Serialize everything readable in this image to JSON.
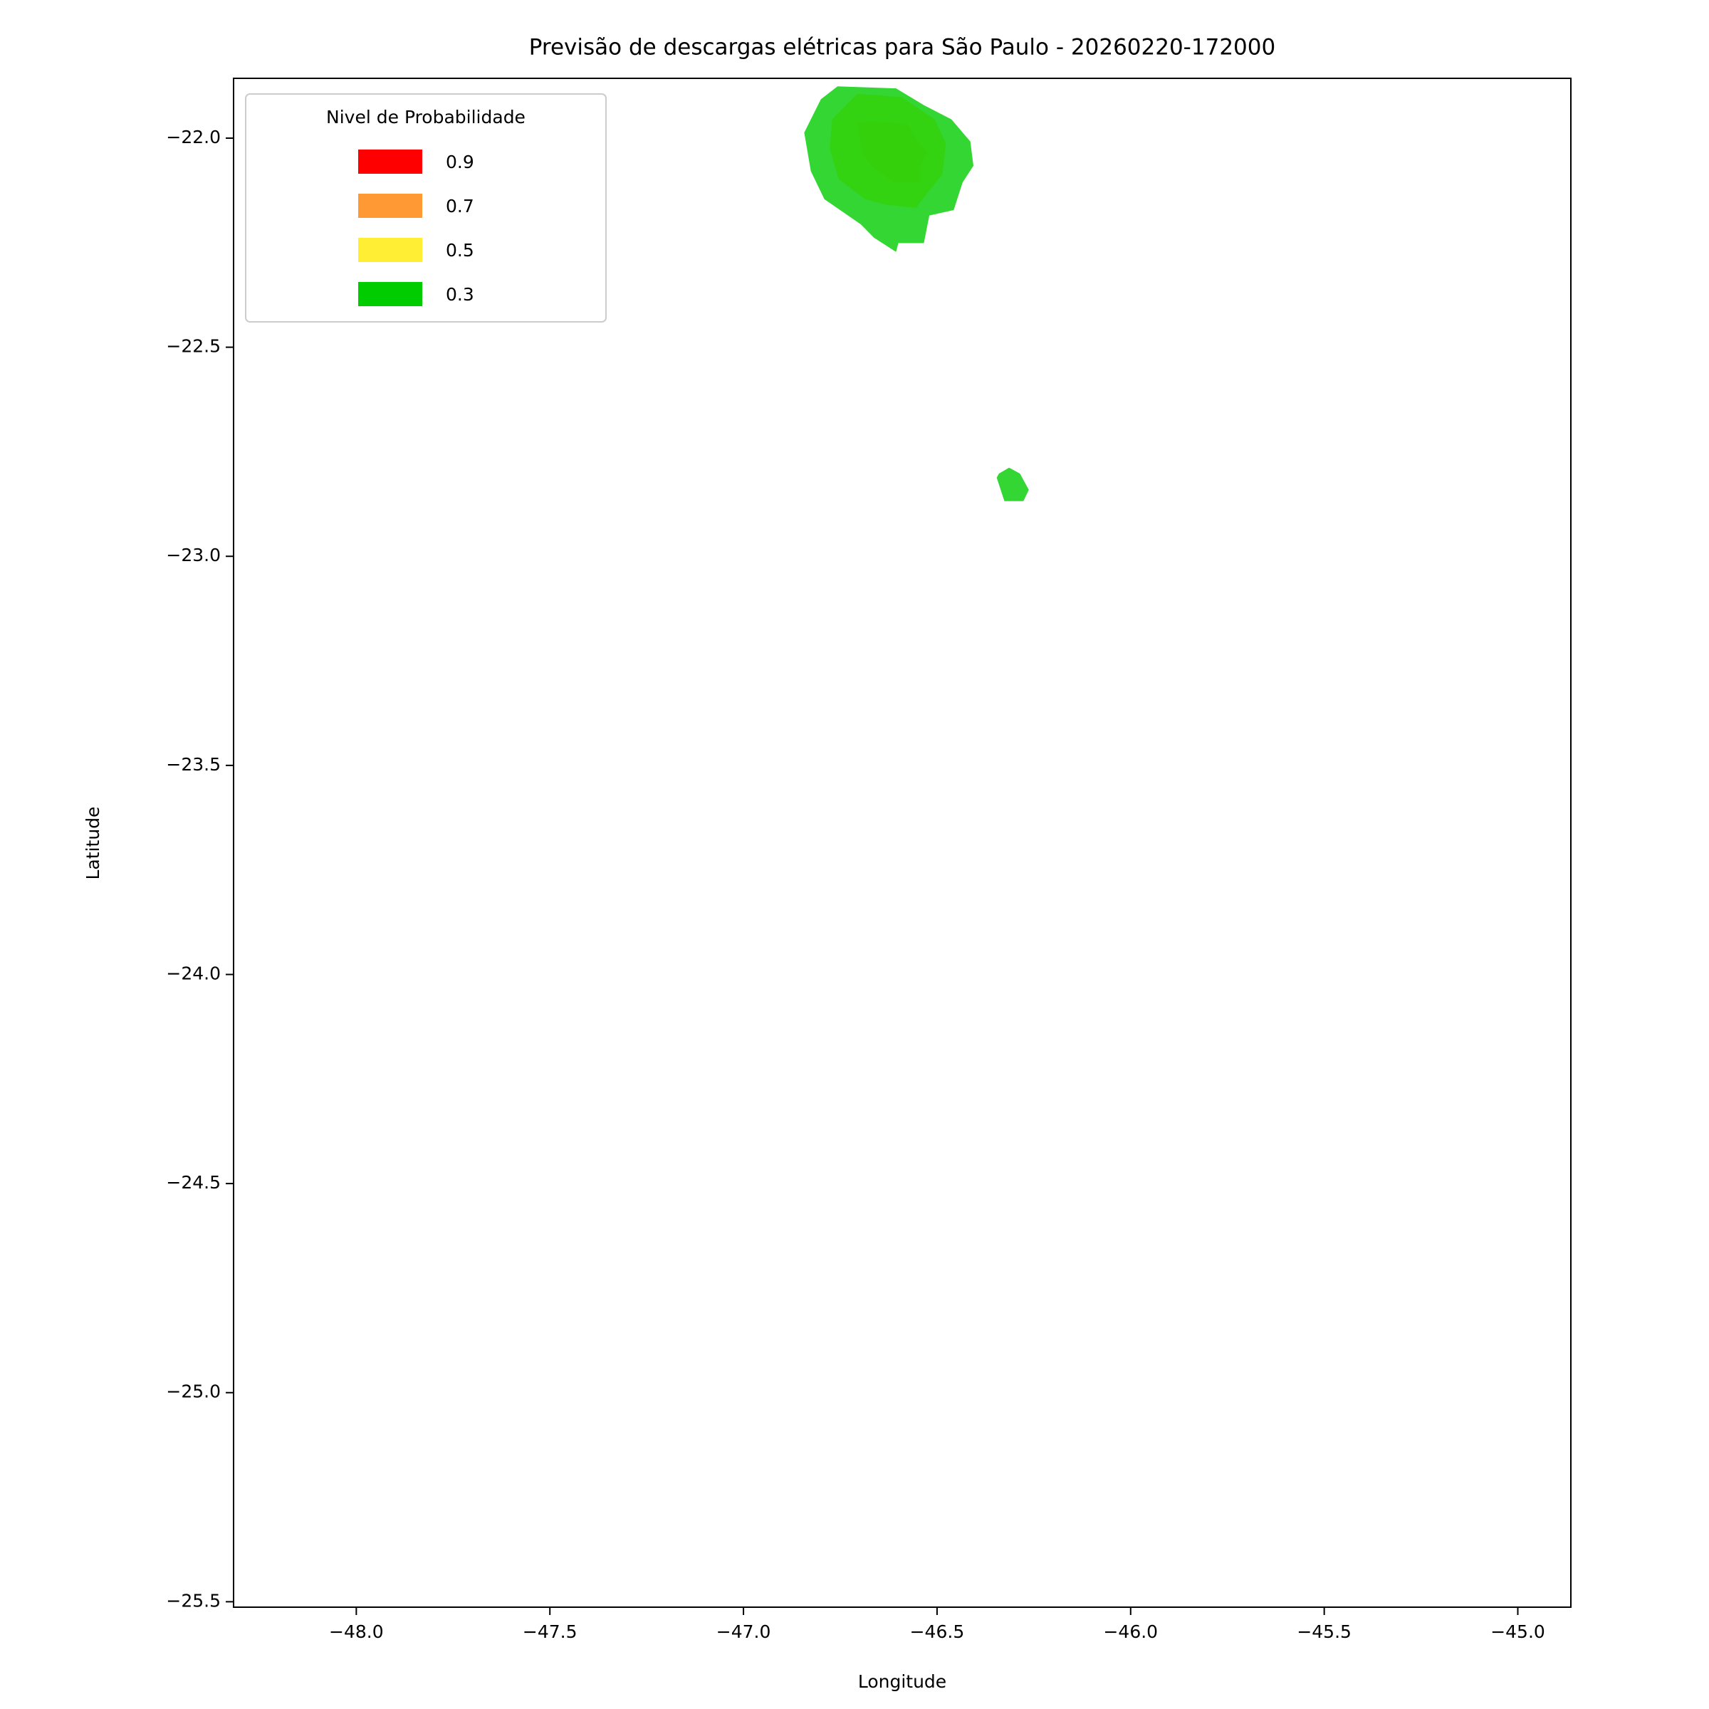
{
  "chart_data": {
    "type": "contour",
    "title": "Previsão de descargas elétricas para São Paulo - 20260220-172000",
    "x_label": "Longitude",
    "y_label": "Latitude",
    "legend_title": "Nivel de Probabilidade",
    "legend": "upper left",
    "xlim": [
      -48.317,
      -44.863
    ],
    "ylim": [
      -25.513,
      -21.857
    ],
    "xticks": [
      {
        "value": -48.0,
        "label": "−48.0"
      },
      {
        "value": -47.5,
        "label": "−47.5"
      },
      {
        "value": -47.0,
        "label": "−47.0"
      },
      {
        "value": -46.5,
        "label": "−46.5"
      },
      {
        "value": -46.0,
        "label": "−46.0"
      },
      {
        "value": -45.5,
        "label": "−45.5"
      },
      {
        "value": -45.0,
        "label": "−45.0"
      }
    ],
    "yticks": [
      {
        "value": -22.0,
        "label": "−22.0"
      },
      {
        "value": -22.5,
        "label": "−22.5"
      },
      {
        "value": -23.0,
        "label": "−23.0"
      },
      {
        "value": -23.5,
        "label": "−23.5"
      },
      {
        "value": -24.0,
        "label": "−24.0"
      },
      {
        "value": -24.5,
        "label": "−24.5"
      },
      {
        "value": -25.0,
        "label": "−25.0"
      },
      {
        "value": -25.5,
        "label": "−25.5"
      }
    ],
    "series": [
      {
        "name": "0.9",
        "color": "#ff0000",
        "polygons": []
      },
      {
        "name": "0.7",
        "color": "#ff9933",
        "polygons": [
          {
            "x": [
              -46.706,
              -46.674,
              -46.577,
              -46.549,
              -46.526,
              -46.543,
              -46.543,
              -46.611,
              -46.663,
              -46.691
            ],
            "y": [
              -21.966,
              -21.96,
              -21.966,
              -22.008,
              -22.034,
              -22.066,
              -22.106,
              -22.106,
              -22.071,
              -22.04
            ]
          }
        ]
      },
      {
        "name": "0.5",
        "color": "#ffee33",
        "polygons": [
          {
            "x": [
              -46.771,
              -46.706,
              -46.591,
              -46.506,
              -46.477,
              -46.486,
              -46.526,
              -46.554,
              -46.634,
              -46.686,
              -46.754,
              -46.777
            ],
            "y": [
              -21.955,
              -21.894,
              -21.902,
              -21.955,
              -22.013,
              -22.087,
              -22.132,
              -22.167,
              -22.159,
              -22.146,
              -22.098,
              -22.026
            ]
          }
        ]
      },
      {
        "name": "0.3",
        "color": "#00cc00",
        "polygons": [
          {
            "x": [
              -46.843,
              -46.8,
              -46.757,
              -46.606,
              -46.534,
              -46.463,
              -46.414,
              -46.406,
              -46.434,
              -46.457,
              -46.52,
              -46.534,
              -46.6,
              -46.606,
              -46.663,
              -46.697,
              -46.791,
              -46.826
            ],
            "y": [
              -21.987,
              -21.907,
              -21.876,
              -21.881,
              -21.921,
              -21.955,
              -22.008,
              -22.066,
              -22.106,
              -22.172,
              -22.185,
              -22.251,
              -22.251,
              -22.272,
              -22.238,
              -22.206,
              -22.146,
              -22.079
            ]
          },
          {
            "x": [
              -46.34,
              -46.314,
              -46.286,
              -46.263,
              -46.277,
              -46.326,
              -46.346
            ],
            "y": [
              -22.802,
              -22.788,
              -22.802,
              -22.841,
              -22.868,
              -22.868,
              -22.812
            ]
          }
        ]
      }
    ]
  }
}
